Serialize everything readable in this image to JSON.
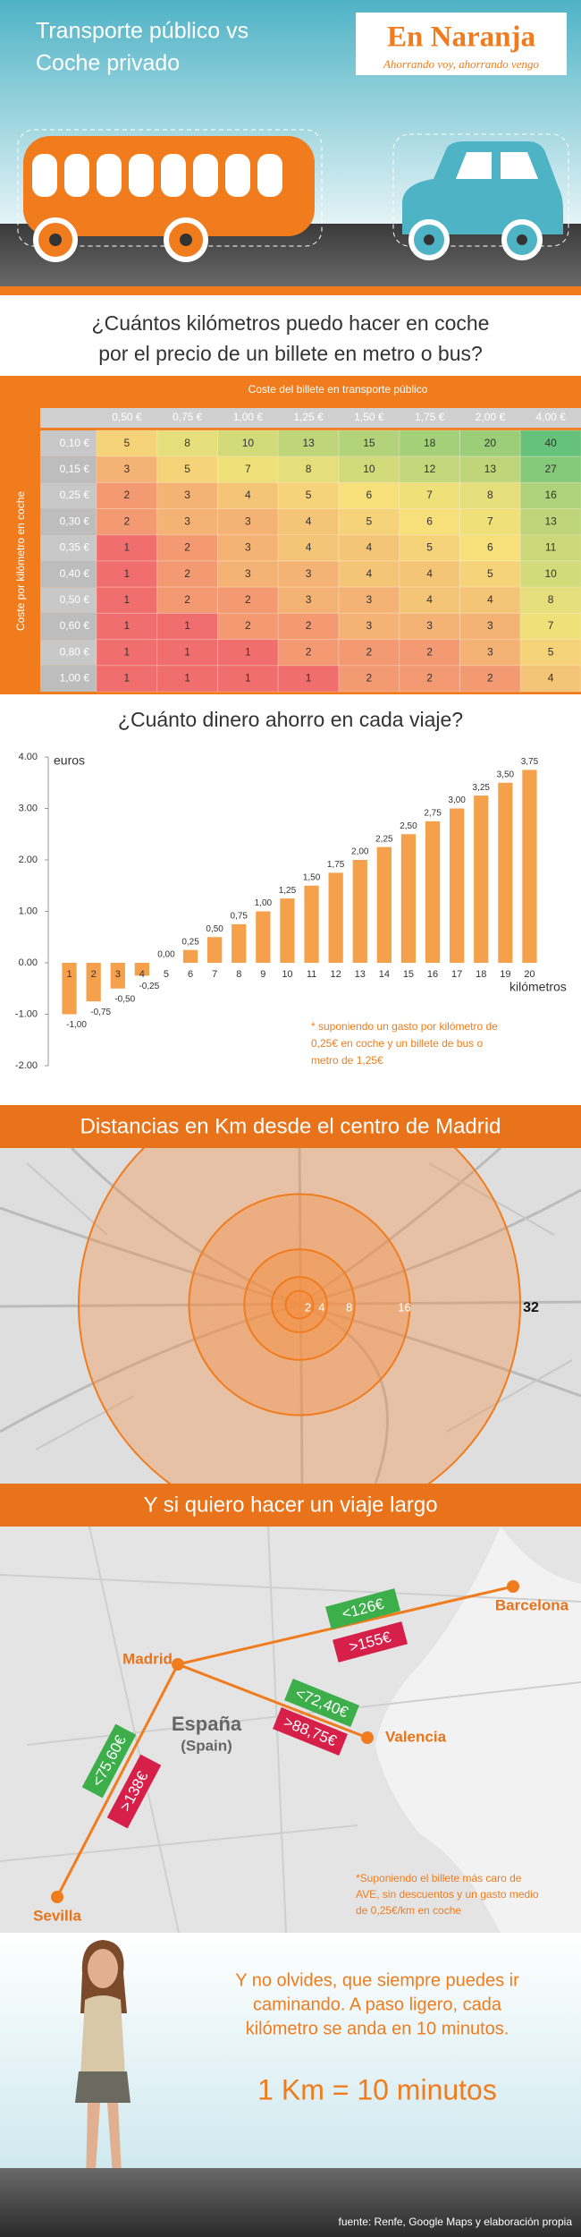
{
  "header": {
    "title": [
      "Transporte público vs",
      "Coche privado"
    ],
    "logo": "En Naranja",
    "tagline": "Ahorrando voy, ahorrando vengo"
  },
  "table": {
    "question": [
      "¿Cuántos kilómetros puedo hacer en coche",
      "por el precio de un billete en metro o bus?"
    ],
    "column_title": "Coste del billete en transporte público",
    "row_title": "Coste por kilómetro en coche",
    "columns": [
      "0,50 €",
      "0,75 €",
      "1,00 €",
      "1,25 €",
      "1,50 €",
      "1,75 €",
      "2,00 €",
      "4,00 €"
    ],
    "rows": [
      {
        "label": "0,10 €",
        "cells": [
          5,
          8,
          10,
          13,
          15,
          18,
          20,
          40
        ]
      },
      {
        "label": "0,15 €",
        "cells": [
          3,
          5,
          7,
          8,
          10,
          12,
          13,
          27
        ]
      },
      {
        "label": "0,25 €",
        "cells": [
          2,
          3,
          4,
          5,
          6,
          7,
          8,
          16
        ]
      },
      {
        "label": "0,30 €",
        "cells": [
          2,
          3,
          3,
          4,
          5,
          6,
          7,
          13
        ]
      },
      {
        "label": "0,35 €",
        "cells": [
          1,
          2,
          3,
          4,
          4,
          5,
          6,
          11
        ]
      },
      {
        "label": "0,40 €",
        "cells": [
          1,
          2,
          3,
          3,
          4,
          4,
          5,
          10
        ]
      },
      {
        "label": "0,50 €",
        "cells": [
          1,
          2,
          2,
          3,
          3,
          4,
          4,
          8
        ]
      },
      {
        "label": "0,60 €",
        "cells": [
          1,
          1,
          2,
          2,
          3,
          3,
          3,
          7
        ]
      },
      {
        "label": "0,80 €",
        "cells": [
          1,
          1,
          1,
          2,
          2,
          2,
          3,
          5
        ]
      },
      {
        "label": "1,00 €",
        "cells": [
          1,
          1,
          1,
          1,
          2,
          2,
          2,
          4
        ]
      }
    ]
  },
  "chart_data": {
    "type": "bar",
    "title": "¿Cuánto dinero ahorro en cada viaje?",
    "y_label": "euros",
    "x_label": "kilómetros",
    "categories": [
      "1",
      "2",
      "3",
      "4",
      "5",
      "6",
      "7",
      "8",
      "9",
      "10",
      "11",
      "12",
      "13",
      "14",
      "15",
      "16",
      "17",
      "18",
      "19",
      "20"
    ],
    "values": [
      -1,
      -0.75,
      -0.5,
      -0.25,
      0,
      0.25,
      0.5,
      0.75,
      1,
      1.25,
      1.5,
      1.75,
      2,
      2.25,
      2.5,
      2.75,
      3,
      3.25,
      3.5,
      3.75
    ],
    "value_labels": [
      "-1,00",
      "-0,75",
      "-0,50",
      "-0,25",
      "0,00",
      "0,25",
      "0,50",
      "0,75",
      "1,00",
      "1,25",
      "1,50",
      "1,75",
      "2,00",
      "2,25",
      "2,50",
      "2,75",
      "3,00",
      "3,25",
      "3,50",
      "3,75"
    ],
    "color": "#f5a04a",
    "ylim": [
      -2,
      4
    ],
    "yticks": [
      {
        "value": 4,
        "label": "4.00"
      },
      {
        "value": 3,
        "label": "3.00"
      },
      {
        "value": 2,
        "label": "2.00"
      },
      {
        "value": 1,
        "label": "1.00"
      },
      {
        "value": 0,
        "label": "0.00"
      },
      {
        "value": -1,
        "label": "-1.00"
      },
      {
        "value": -2,
        "label": "-2.00"
      }
    ],
    "grid": false,
    "note": [
      "* suponiendo un gasto por kilómetro de",
      "0,25€ en coche y un billete de bus o",
      "metro de 1,25€"
    ]
  },
  "distances": {
    "title": "Distancias en Km desde el centro de Madrid",
    "rings": [
      32,
      16,
      8,
      4,
      2
    ]
  },
  "long_trip": {
    "title": "Y si quiero hacer un viaje largo",
    "cities": [
      "Madrid",
      "Barcelona",
      "Valencia",
      "Sevilla"
    ],
    "region": [
      "España",
      "(Spain)"
    ],
    "prices": [
      "<126€",
      ">155€",
      "<72,40€",
      ">88,75€",
      "<75,60€",
      ">138€"
    ],
    "note": [
      "*Suponiendo el billete más caro de",
      "AVE, sin descuentos y un gasto medio",
      "de 0,25€/km en coche"
    ]
  },
  "walk": {
    "text": [
      "Y no olvides, que siempre puedes ir",
      "caminando. A paso ligero, cada",
      "kilómetro se anda en 10 minutos."
    ],
    "equation": "1 Km = 10 minutos"
  },
  "footer": {
    "source": "fuente: Renfe, Google Maps y elaboración propia"
  }
}
